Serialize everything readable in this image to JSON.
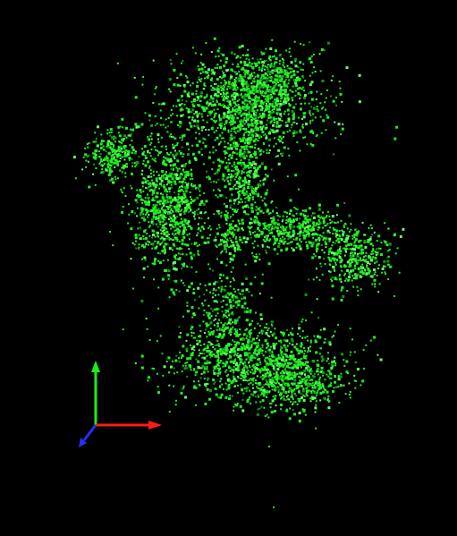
{
  "viewer": {
    "background_color": "#000000",
    "point_color": "#22ee22",
    "point_highlight_color": "#66ff66",
    "point_shadow_color": "#119911"
  },
  "axes_gizmo": {
    "x_axis": {
      "color": "#ff1a1a",
      "icon": "red-arrow"
    },
    "y_axis": {
      "color": "#1aee1a",
      "icon": "green-arrow"
    },
    "z_axis": {
      "color": "#2233ff",
      "icon": "blue-arrow"
    }
  }
}
